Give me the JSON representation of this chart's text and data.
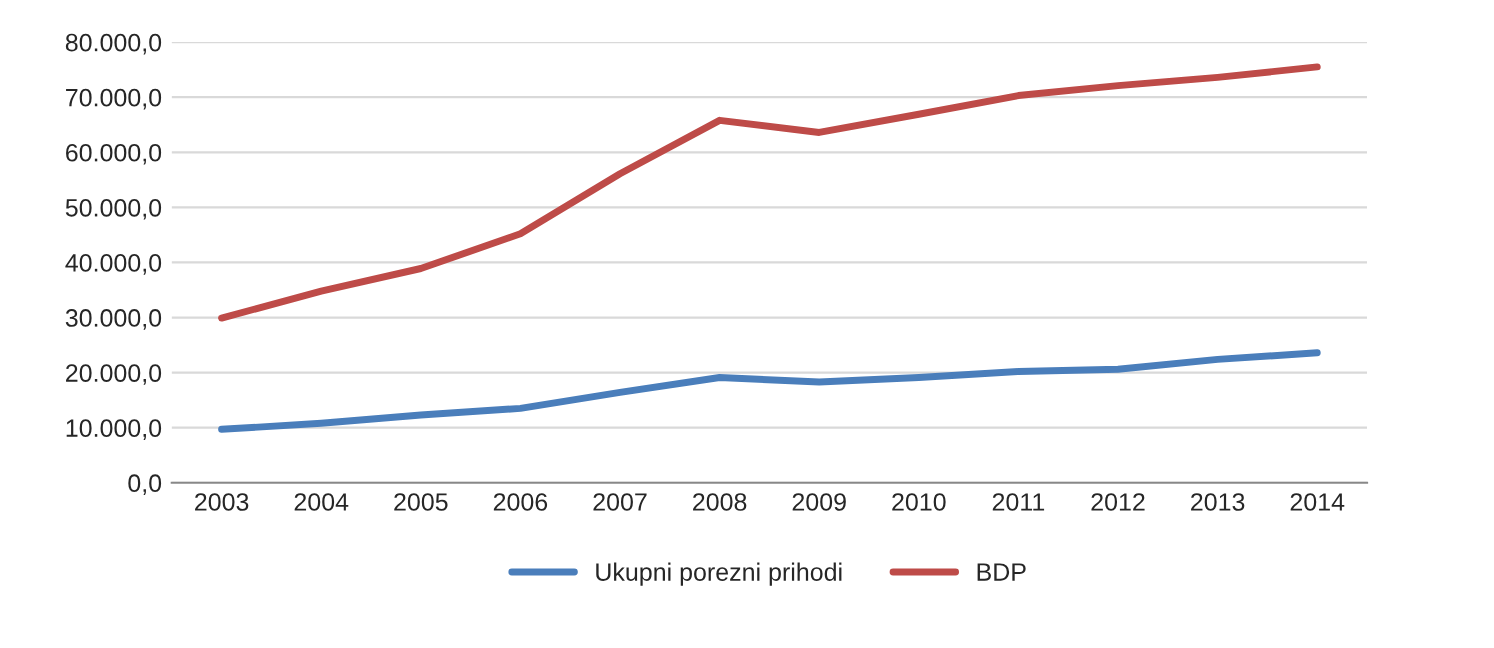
{
  "chart_data": {
    "type": "line",
    "categories": [
      "2003",
      "2004",
      "2005",
      "2006",
      "2007",
      "2008",
      "2009",
      "2010",
      "2011",
      "2012",
      "2013",
      "2014"
    ],
    "series": [
      {
        "name": "Ukupni porezni prihodi",
        "color": "#4a7ebb",
        "values": [
          9700,
          10800,
          12300,
          13500,
          16400,
          19100,
          18300,
          19100,
          20200,
          20600,
          22400,
          23600
        ]
      },
      {
        "name": "BDP",
        "color": "#be4b48",
        "values": [
          29900,
          34800,
          38900,
          45200,
          56100,
          65800,
          63600,
          66900,
          70300,
          72100,
          73600,
          75500
        ]
      }
    ],
    "ylim": [
      0,
      80000
    ],
    "yticks": [
      {
        "value": 0,
        "label": "0,0"
      },
      {
        "value": 10000,
        "label": "10.000,0"
      },
      {
        "value": 20000,
        "label": "20.000,0"
      },
      {
        "value": 30000,
        "label": "30.000,0"
      },
      {
        "value": 40000,
        "label": "40.000,0"
      },
      {
        "value": 50000,
        "label": "50.000,0"
      },
      {
        "value": 60000,
        "label": "60.000,0"
      },
      {
        "value": 70000,
        "label": "70.000,0"
      },
      {
        "value": 80000,
        "label": "80.000,0"
      }
    ],
    "grid": "y",
    "legend": "bottom",
    "line_style": "solid",
    "marker": "none"
  }
}
